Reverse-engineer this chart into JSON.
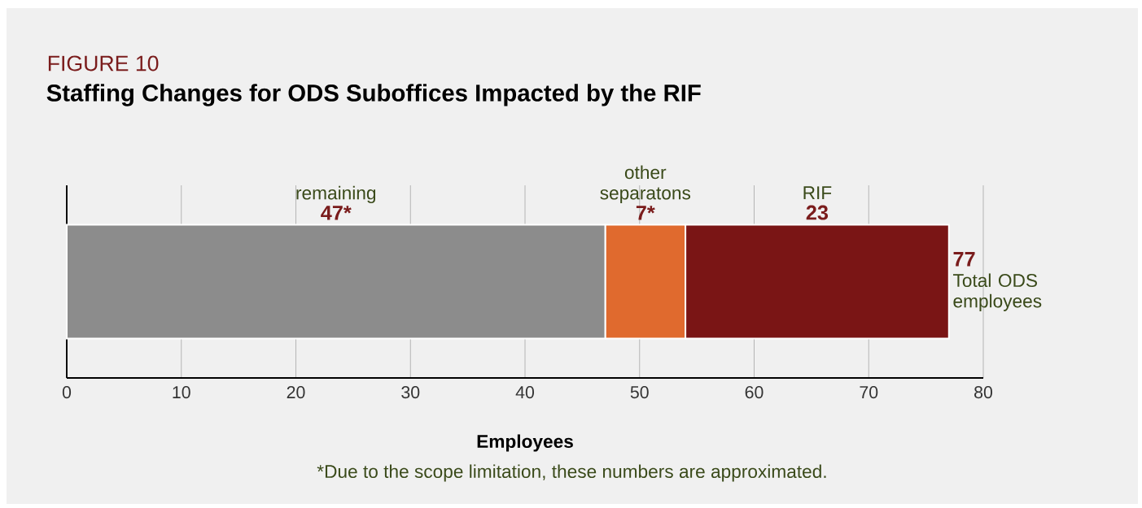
{
  "chart_data": {
    "type": "bar",
    "orientation": "horizontal",
    "stacked": true,
    "title": "Staffing Changes for ODS Suboffices Impacted by the RIF",
    "xlabel": "Employees",
    "categories": [
      null
    ],
    "series": [
      {
        "name": "remaining",
        "color": "#8c8c8c",
        "values": [
          47
        ],
        "value_labels": [
          "47*"
        ]
      },
      {
        "name": "other separatons",
        "color": "#e06a2e",
        "values": [
          7
        ],
        "value_labels": [
          "7*"
        ]
      },
      {
        "name": "RIF",
        "color": "#7a1515",
        "values": [
          23
        ],
        "value_labels": [
          "23"
        ]
      }
    ],
    "totals": [
      "77"
    ],
    "annotations": [
      "FIGURE 10",
      "Total ODS employees",
      "*Due to the scope limitation, these numbers are approximated."
    ],
    "xlim": [
      0,
      80
    ],
    "xticks": [
      0,
      10,
      20,
      30,
      40,
      50,
      60,
      70,
      80
    ],
    "grid": "x",
    "tick_labels": "x"
  }
}
